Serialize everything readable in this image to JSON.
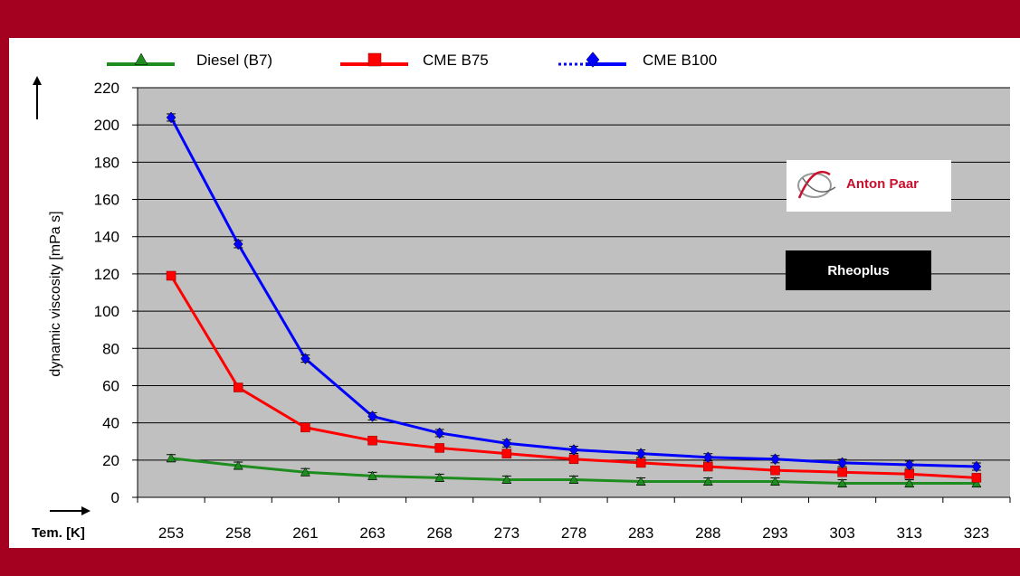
{
  "chart_data": {
    "type": "line",
    "title": "",
    "xlabel": "Tem. [K]",
    "ylabel": "dynamic viscosity [mPa s]",
    "categories": [
      "253",
      "258",
      "261",
      "263",
      "268",
      "273",
      "278",
      "283",
      "288",
      "293",
      "303",
      "313",
      "323"
    ],
    "ylim": [
      0,
      220
    ],
    "yticks": [
      0,
      20,
      40,
      60,
      80,
      100,
      120,
      140,
      160,
      180,
      200,
      220
    ],
    "grid": true,
    "legend_position": "top",
    "series": [
      {
        "name": "Diesel (B7)",
        "color": "#1e8c1e",
        "marker": "triangle",
        "values": [
          21,
          17,
          13.5,
          11.5,
          10.5,
          9.5,
          9.5,
          8.5,
          8.5,
          8.5,
          7.5,
          7.5,
          7.5
        ]
      },
      {
        "name": "CME B75",
        "color": "#ff0000",
        "marker": "square",
        "values": [
          119,
          59,
          37.5,
          30.5,
          26.5,
          23.5,
          20.5,
          18.5,
          16.5,
          14.5,
          13.5,
          12.5,
          10.5
        ]
      },
      {
        "name": "CME B100",
        "color": "#0000ff",
        "marker": "diamond",
        "values": [
          204,
          136,
          74.5,
          43.5,
          34.5,
          29,
          25.5,
          23.5,
          21.5,
          20.5,
          18.5,
          17.5,
          16.5
        ]
      }
    ]
  },
  "logo_text": "Anton Paar",
  "badge_text": "Rheoplus",
  "colors": {
    "band": "#a4001f",
    "plot_bg": "#c0c0c0",
    "gridline": "#000000"
  }
}
